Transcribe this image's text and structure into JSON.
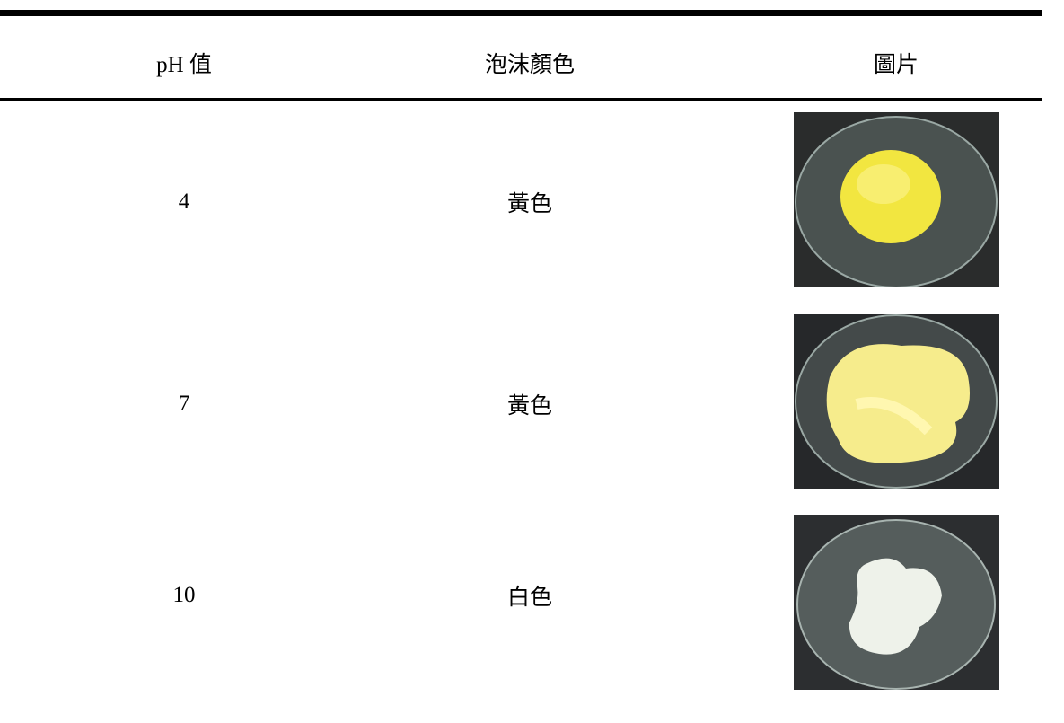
{
  "table": {
    "header": [
      "pH 值",
      "泡沫顏色",
      "圖片"
    ],
    "rows": [
      [
        "4",
        "黃色"
      ],
      [
        "7",
        "黃色"
      ],
      [
        "10",
        "白色"
      ]
    ]
  }
}
